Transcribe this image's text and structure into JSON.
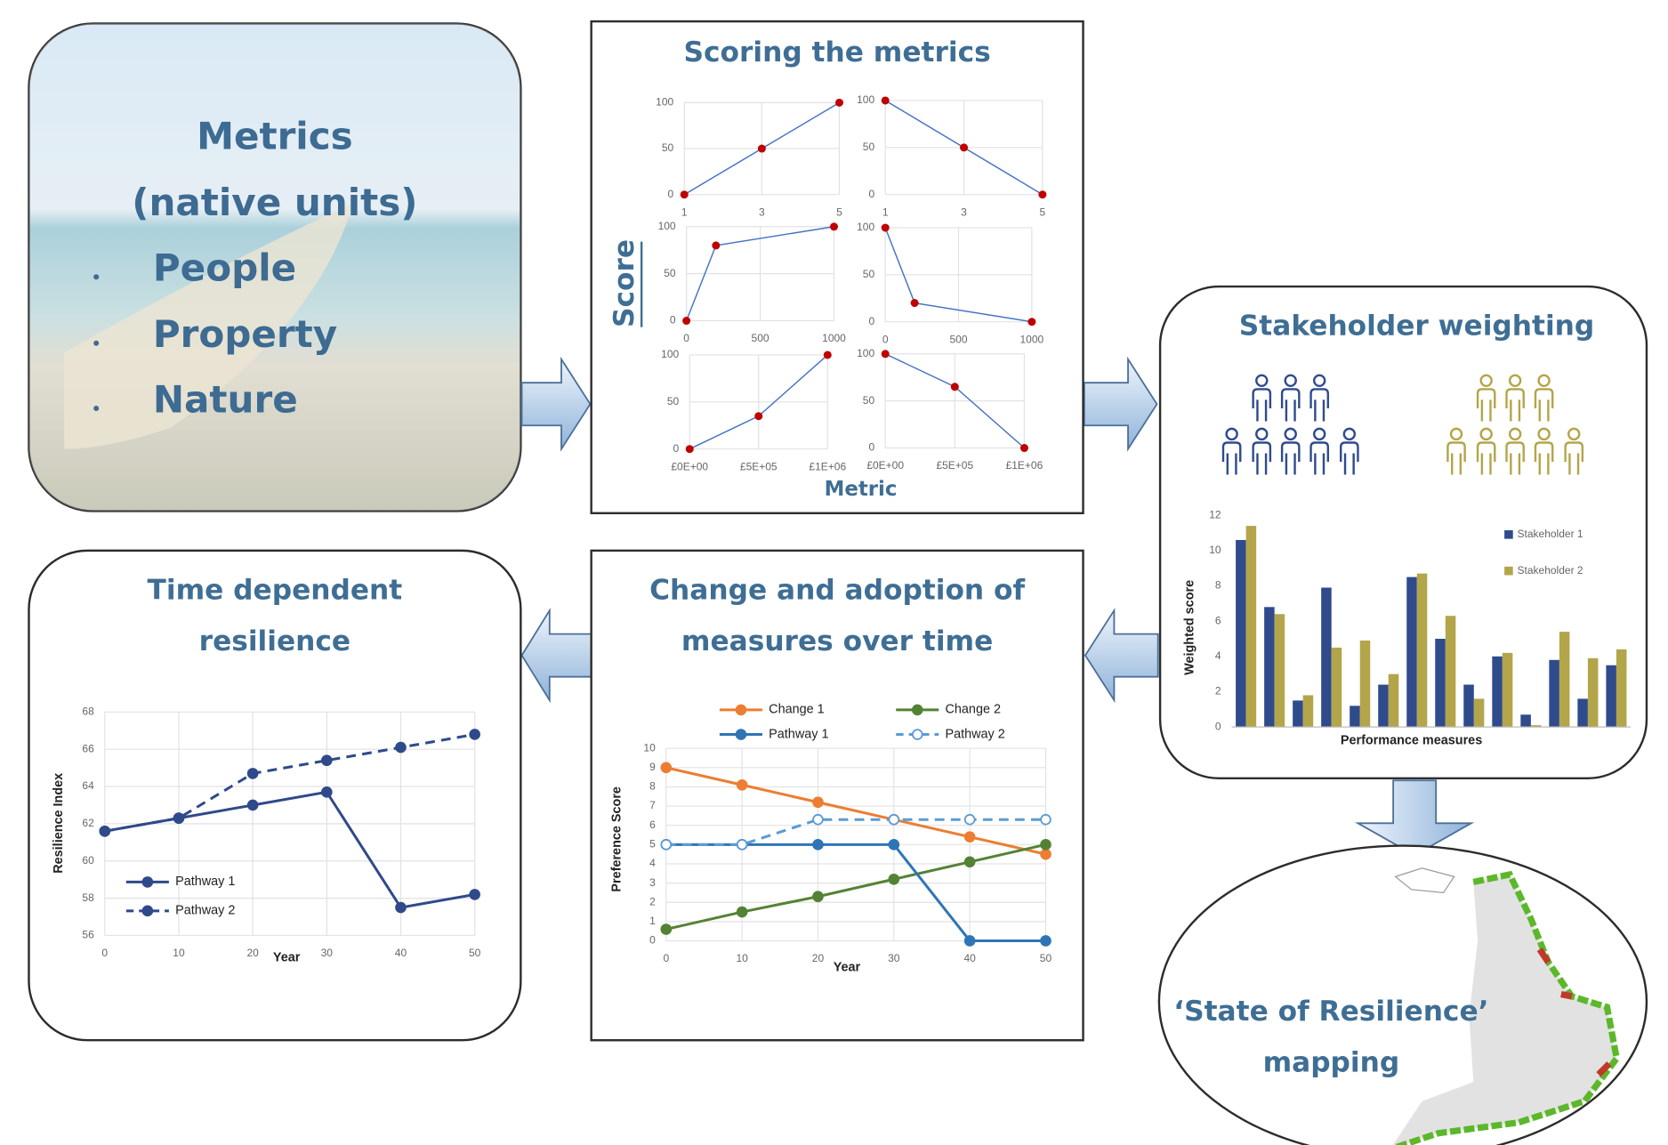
{
  "diagram": {
    "metrics": {
      "title": "Metrics",
      "subtitle": "(native units)",
      "items": [
        "People",
        "Property",
        "Nature"
      ]
    },
    "scoring": {
      "title": "Scoring the metrics",
      "y_label": "Score",
      "x_label": "Metric"
    },
    "mapping": {
      "title": [
        "‘State of Resilience’",
        "mapping"
      ]
    }
  },
  "chart_data": [
    {
      "type": "line",
      "x": [
        1,
        3,
        5
      ],
      "xlim": [
        1,
        5
      ],
      "xticks": [
        1,
        3,
        5
      ],
      "ylim": [
        0,
        100
      ],
      "yticks": [
        0,
        50,
        100
      ],
      "grid": true,
      "series": [
        {
          "color": "#4472c4",
          "marker_color": "#c00000",
          "values": [
            0,
            50,
            100
          ]
        }
      ]
    },
    {
      "type": "line",
      "x": [
        1,
        3,
        5
      ],
      "xlim": [
        1,
        5
      ],
      "xticks": [
        1,
        3,
        5
      ],
      "ylim": [
        0,
        100
      ],
      "yticks": [
        0,
        50,
        100
      ],
      "grid": true,
      "series": [
        {
          "color": "#4472c4",
          "marker_color": "#c00000",
          "values": [
            100,
            50,
            0
          ]
        }
      ]
    },
    {
      "type": "line",
      "x": [
        0,
        200,
        1000
      ],
      "xlim": [
        0,
        1000
      ],
      "xticks": [
        0,
        500,
        1000
      ],
      "ylim": [
        0,
        100
      ],
      "yticks": [
        0,
        50,
        100
      ],
      "grid": true,
      "series": [
        {
          "color": "#4472c4",
          "marker_color": "#c00000",
          "values": [
            0,
            80,
            100
          ]
        }
      ]
    },
    {
      "type": "line",
      "x": [
        0,
        200,
        1000
      ],
      "xlim": [
        0,
        1000
      ],
      "xticks": [
        0,
        500,
        1000
      ],
      "ylim": [
        0,
        100
      ],
      "yticks": [
        0,
        50,
        100
      ],
      "grid": true,
      "series": [
        {
          "color": "#4472c4",
          "marker_color": "#c00000",
          "values": [
            100,
            20,
            0
          ]
        }
      ]
    },
    {
      "type": "line",
      "x": [
        0,
        500000,
        1000000
      ],
      "xlim": [
        0,
        1000000
      ],
      "xticks": [
        {
          "value": 0,
          "label": "£0E+00"
        },
        {
          "value": 500000,
          "label": "£5E+05"
        },
        {
          "value": 1000000,
          "label": "£1E+06"
        }
      ],
      "ylim": [
        0,
        100
      ],
      "yticks": [
        0,
        50,
        100
      ],
      "grid": true,
      "series": [
        {
          "color": "#4472c4",
          "marker_color": "#c00000",
          "values": [
            0,
            35,
            100
          ]
        }
      ]
    },
    {
      "type": "line",
      "x": [
        0,
        500000,
        1000000
      ],
      "xlim": [
        0,
        1000000
      ],
      "xticks": [
        {
          "value": 0,
          "label": "£0E+00"
        },
        {
          "value": 500000,
          "label": "£5E+05"
        },
        {
          "value": 1000000,
          "label": "£1E+06"
        }
      ],
      "ylim": [
        0,
        100
      ],
      "yticks": [
        0,
        50,
        100
      ],
      "grid": true,
      "series": [
        {
          "color": "#4472c4",
          "marker_color": "#c00000",
          "values": [
            100,
            65,
            0
          ]
        }
      ]
    },
    {
      "type": "bar",
      "title": "Stakeholder weighting",
      "xlabel": "Performance measures",
      "ylabel": "Weighted score",
      "categories": [
        null,
        null,
        null,
        null,
        null,
        null,
        null,
        null,
        null,
        null,
        null,
        null,
        null,
        null
      ],
      "ylim": [
        0,
        12
      ],
      "yticks": [
        0,
        2,
        4,
        6,
        8,
        10,
        12
      ],
      "grid": false,
      "legend": "upper right",
      "series": [
        {
          "name": "Stakeholder 1",
          "color": "#2f4b8c",
          "values": [
            10.6,
            6.8,
            1.5,
            7.9,
            1.2,
            2.4,
            8.5,
            5.0,
            2.4,
            4.0,
            0.7,
            3.8,
            1.6,
            3.5
          ]
        },
        {
          "name": "Stakeholder 2",
          "color": "#b3a54a",
          "values": [
            11.4,
            6.4,
            1.8,
            4.5,
            4.9,
            3.0,
            8.7,
            6.3,
            1.6,
            4.2,
            0.1,
            5.4,
            3.9,
            4.4
          ]
        }
      ]
    },
    {
      "type": "line",
      "title": [
        "Change and adoption of",
        "measures over time"
      ],
      "xlabel": "Year",
      "ylabel": "Preference Score",
      "x": [
        0,
        10,
        20,
        30,
        40,
        50
      ],
      "xlim": [
        0,
        50
      ],
      "xticks": [
        0,
        10,
        20,
        30,
        40,
        50
      ],
      "ylim": [
        0,
        10
      ],
      "yticks": [
        0,
        1,
        2,
        3,
        4,
        5,
        6,
        7,
        8,
        9,
        10
      ],
      "grid": true,
      "legend": "top",
      "series": [
        {
          "name": "Change 1",
          "color": "#ed7d31",
          "values": [
            9,
            8.1,
            7.2,
            6.3,
            5.4,
            4.5
          ]
        },
        {
          "name": "Change 2",
          "color": "#548235",
          "values": [
            0.6,
            1.5,
            2.3,
            3.2,
            4.1,
            5
          ]
        },
        {
          "name": "Pathway 1",
          "color": "#2e75b6",
          "values": [
            5,
            5,
            5,
            5,
            0,
            0
          ]
        },
        {
          "name": "Pathway 2",
          "color": "#5b9bd5",
          "dash": true,
          "marker": "open",
          "values": [
            5,
            5,
            6.3,
            6.3,
            6.3,
            6.3
          ]
        }
      ]
    },
    {
      "type": "line",
      "title": [
        "Time dependent",
        "resilience"
      ],
      "xlabel": "Year",
      "ylabel": "Resilience Index",
      "x": [
        0,
        10,
        20,
        30,
        40,
        50
      ],
      "xlim": [
        0,
        50
      ],
      "xticks": [
        0,
        10,
        20,
        30,
        40,
        50
      ],
      "ylim": [
        56,
        68
      ],
      "yticks": [
        56,
        58,
        60,
        62,
        64,
        66,
        68
      ],
      "grid": true,
      "legend": "lower left",
      "series": [
        {
          "name": "Pathway 1",
          "color": "#2f4a8a",
          "values": [
            61.6,
            62.3,
            63.0,
            63.7,
            57.5,
            58.2
          ]
        },
        {
          "name": "Pathway 2",
          "color": "#2f4a8a",
          "dash": true,
          "values": [
            61.6,
            62.3,
            64.7,
            65.4,
            66.1,
            66.8
          ]
        }
      ]
    }
  ]
}
